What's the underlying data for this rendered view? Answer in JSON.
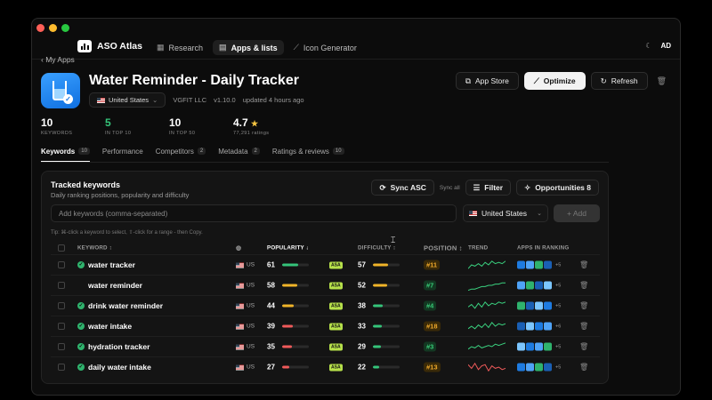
{
  "window": {
    "dots": [
      "#ff5f57",
      "#febc2e",
      "#28c840"
    ]
  },
  "brand": {
    "name": "ASO Atlas"
  },
  "nav": [
    {
      "label": "Research",
      "icon": "grid-icon",
      "glyph": "▦",
      "active": false
    },
    {
      "label": "Apps & lists",
      "icon": "bag-icon",
      "glyph": "▤",
      "active": true
    },
    {
      "label": "Icon Generator",
      "icon": "magic-wand-icon",
      "glyph": "⟋",
      "active": false
    }
  ],
  "topright": {
    "theme_icon": "moon-icon",
    "avatar": "AD"
  },
  "back": {
    "label": "My Apps"
  },
  "app": {
    "title": "Water Reminder - Daily Tracker",
    "country": "United States",
    "developer": "VGFIT LLC",
    "version": "v1.10.0",
    "updated": "updated 4 hours ago"
  },
  "actions": {
    "app_store": "App Store",
    "optimize": "Optimize",
    "refresh": "Refresh"
  },
  "stats": [
    {
      "value": "10",
      "label": "KEYWORDS"
    },
    {
      "value": "5",
      "label": "IN TOP 10"
    },
    {
      "value": "10",
      "label": "IN TOP 50"
    },
    {
      "value": "4.7",
      "label": "77,291 ratings"
    }
  ],
  "tabs": [
    {
      "label": "Keywords",
      "count": "10",
      "active": true
    },
    {
      "label": "Performance",
      "count": "",
      "active": false
    },
    {
      "label": "Competitors",
      "count": "2",
      "active": false
    },
    {
      "label": "Metadata",
      "count": "2",
      "active": false
    },
    {
      "label": "Ratings & reviews",
      "count": "10",
      "active": false
    }
  ],
  "panel": {
    "title": "Tracked keywords",
    "subtitle": "Daily ranking positions, popularity and difficulty",
    "sync_asc": "Sync ASC",
    "sync_all": "Sync all",
    "filter": "Filter",
    "opportunities": "Opportunities 8",
    "input_placeholder": "Add keywords (comma-separated)",
    "country": "United States",
    "add": "+ Add",
    "tip": "Tip: ⌘-click a keyword to select, ⇧-click for a range - then Copy."
  },
  "table": {
    "headers": {
      "keyword": "KEYWORD ↕",
      "popularity": "POPULARITY ↓",
      "difficulty": "DIFFICULTY ↕",
      "position": "POSITION ↕",
      "trend": "TREND",
      "apps": "APPS IN RANKING"
    },
    "rows": [
      {
        "keyword": "water tracker",
        "checked": true,
        "country": "US",
        "popularity": 61,
        "pop_color": "#35c47a",
        "asa": "ASA",
        "difficulty": 57,
        "diff_color": "#f0b429",
        "position": "#11",
        "pos_type": "amber",
        "trend": [
          8,
          5,
          6,
          4,
          6,
          3,
          5,
          2,
          4,
          3,
          4,
          2
        ],
        "trend_color": "#3ad17f",
        "apps_more": "+5"
      },
      {
        "keyword": "water reminder",
        "checked": false,
        "country": "US",
        "popularity": 58,
        "pop_color": "#f0b429",
        "asa": "ASA",
        "difficulty": 52,
        "diff_color": "#f0b429",
        "position": "#7",
        "pos_type": "green",
        "trend": [
          9,
          8,
          8,
          7,
          6,
          6,
          5,
          5,
          4,
          4,
          3,
          3
        ],
        "trend_color": "#3ad17f",
        "apps_more": "+5"
      },
      {
        "keyword": "drink water reminder",
        "checked": true,
        "country": "US",
        "popularity": 44,
        "pop_color": "#f0b429",
        "asa": "ASA",
        "difficulty": 38,
        "diff_color": "#35c47a",
        "position": "#4",
        "pos_type": "green",
        "trend": [
          6,
          4,
          7,
          3,
          6,
          2,
          5,
          3,
          4,
          2,
          3,
          2
        ],
        "trend_color": "#3ad17f",
        "apps_more": "+5"
      },
      {
        "keyword": "water intake",
        "checked": true,
        "country": "US",
        "popularity": 39,
        "pop_color": "#ef5a5a",
        "asa": "ASA",
        "difficulty": 33,
        "diff_color": "#35c47a",
        "position": "#18",
        "pos_type": "amber",
        "trend": [
          7,
          5,
          7,
          4,
          6,
          3,
          6,
          2,
          5,
          3,
          4,
          3
        ],
        "trend_color": "#3ad17f",
        "apps_more": "+6"
      },
      {
        "keyword": "hydration tracker",
        "checked": true,
        "country": "US",
        "popularity": 35,
        "pop_color": "#ef5a5a",
        "asa": "ASA",
        "difficulty": 29,
        "diff_color": "#35c47a",
        "position": "#3",
        "pos_type": "green",
        "trend": [
          7,
          5,
          6,
          4,
          6,
          5,
          4,
          5,
          3,
          4,
          3,
          2
        ],
        "trend_color": "#3ad17f",
        "apps_more": "+5"
      },
      {
        "keyword": "daily water intake",
        "checked": true,
        "country": "US",
        "popularity": 27,
        "pop_color": "#ef5a5a",
        "asa": "ASA",
        "difficulty": 22,
        "diff_color": "#35c47a",
        "position": "#13",
        "pos_type": "amber",
        "trend": [
          3,
          6,
          2,
          7,
          4,
          3,
          8,
          4,
          6,
          5,
          7,
          6
        ],
        "trend_color": "#ef5a5a",
        "apps_more": "+5"
      }
    ],
    "app_icon_colors": [
      "#1e7be0",
      "#4fa3f7",
      "#2fb36d",
      "#1a5fb4",
      "#7cc6ff"
    ]
  }
}
